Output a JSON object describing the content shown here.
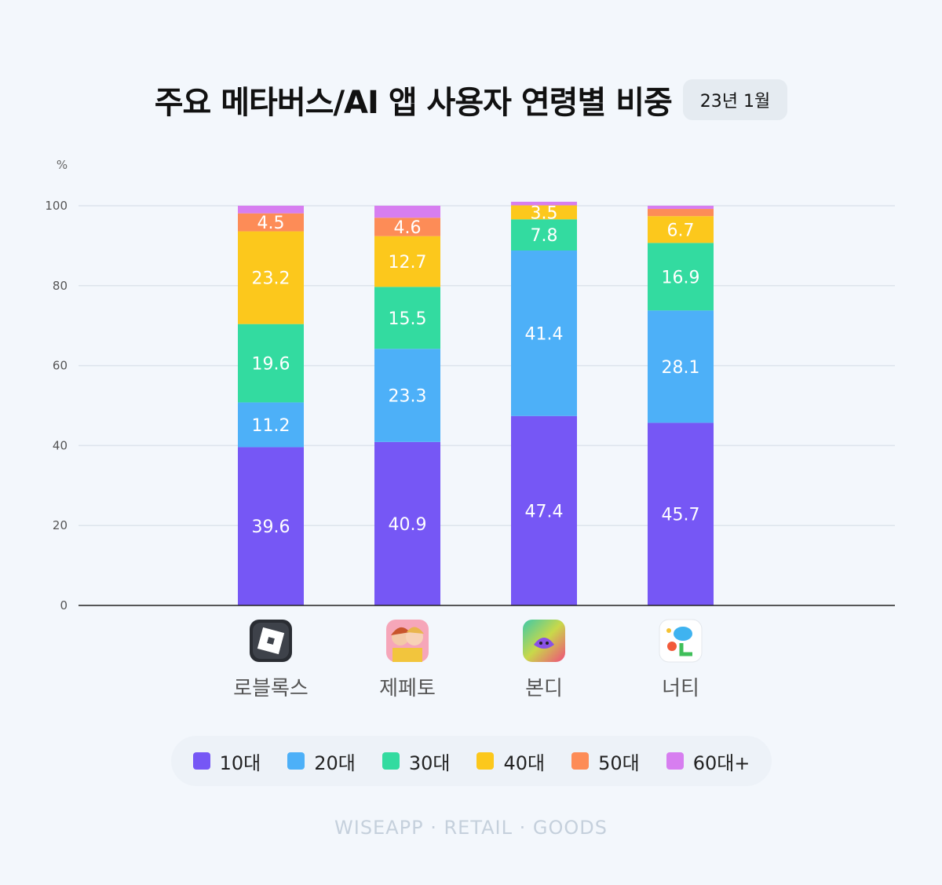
{
  "title": "주요 메타버스/AI 앱 사용자 연령별 비중",
  "badge": "23년 1월",
  "footer": "WISEAPP · RETAIL · GOODS",
  "chart_data": {
    "type": "bar",
    "stacked": true,
    "ylabel": "%",
    "ylim": [
      0,
      100
    ],
    "yticks": [
      "0",
      "20",
      "40",
      "60",
      "80",
      "100"
    ],
    "categories": [
      "로블록스",
      "제페토",
      "본디",
      "너티"
    ],
    "series": [
      {
        "name": "10대",
        "color": "#7657f5",
        "values": [
          39.6,
          40.9,
          47.4,
          45.7
        ],
        "labels": [
          "39.6",
          "40.9",
          "47.4",
          "45.7"
        ]
      },
      {
        "name": "20대",
        "color": "#4db0f8",
        "values": [
          11.2,
          23.3,
          41.4,
          28.1
        ],
        "labels": [
          "11.2",
          "23.3",
          "41.4",
          "28.1"
        ]
      },
      {
        "name": "30대",
        "color": "#33dba0",
        "values": [
          19.6,
          15.5,
          7.8,
          16.9
        ],
        "labels": [
          "19.6",
          "15.5",
          "7.8",
          "16.9"
        ]
      },
      {
        "name": "40대",
        "color": "#fcc81c",
        "values": [
          23.2,
          12.7,
          3.5,
          6.7
        ],
        "labels": [
          "23.2",
          "12.7",
          "3.5",
          "6.7"
        ]
      },
      {
        "name": "50대",
        "color": "#fd8c57",
        "values": [
          4.5,
          4.6,
          0,
          1.8
        ],
        "labels": [
          "4.5",
          "4.6",
          "",
          ""
        ]
      },
      {
        "name": "60대+",
        "color": "#d77ef0",
        "values": [
          1.9,
          3.0,
          0.9,
          0.8
        ],
        "labels": [
          "",
          "",
          "",
          ""
        ]
      }
    ],
    "grid": true
  }
}
